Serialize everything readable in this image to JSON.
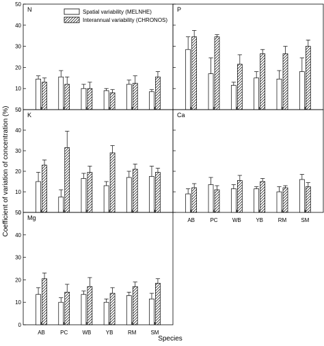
{
  "figure": {
    "ylabel": "Coefficient of variation of concentration (%)",
    "xlabel": "Species",
    "legend": [
      {
        "label": "Spatial variability (MELNHE)",
        "pattern": "open"
      },
      {
        "label": "Interannual variability (CHRONOS)",
        "pattern": "hatched"
      }
    ]
  },
  "chart_data": [
    {
      "type": "bar",
      "panel": "N",
      "categories": [
        "AB",
        "PC",
        "WB",
        "YB",
        "RM",
        "SM"
      ],
      "ylim": [
        0,
        50
      ],
      "yticks": [
        0,
        10,
        20,
        30,
        40,
        50
      ],
      "show_x_tick_labels": false,
      "series": [
        {
          "name": "Spatial variability (MELNHE)",
          "values": [
            14.5,
            15.5,
            10.0,
            9.0,
            12.0,
            8.5
          ],
          "errors": [
            1.5,
            3.0,
            2.0,
            1.0,
            2.0,
            1.0
          ]
        },
        {
          "name": "Interannual variability (CHRONOS)",
          "values": [
            13.0,
            12.0,
            10.0,
            8.0,
            12.5,
            15.5
          ],
          "errors": [
            2.0,
            3.5,
            3.0,
            1.5,
            3.5,
            2.5
          ]
        }
      ]
    },
    {
      "type": "bar",
      "panel": "P",
      "categories": [
        "AB",
        "PC",
        "WB",
        "YB",
        "RM",
        "SM"
      ],
      "ylim": [
        0,
        50
      ],
      "yticks": [
        0,
        10,
        20,
        30,
        40,
        50
      ],
      "show_x_tick_labels": false,
      "series": [
        {
          "name": "Spatial variability (MELNHE)",
          "values": [
            28.5,
            17.0,
            11.5,
            15.0,
            14.5,
            18.0
          ],
          "errors": [
            6.0,
            7.5,
            1.5,
            3.0,
            4.0,
            6.5
          ]
        },
        {
          "name": "Interannual variability (CHRONOS)",
          "values": [
            34.5,
            34.5,
            21.5,
            26.5,
            26.5,
            30.0
          ],
          "errors": [
            3.0,
            1.0,
            4.5,
            2.0,
            3.5,
            3.0
          ]
        }
      ]
    },
    {
      "type": "bar",
      "panel": "K",
      "categories": [
        "AB",
        "PC",
        "WB",
        "YB",
        "RM",
        "SM"
      ],
      "ylim": [
        0,
        50
      ],
      "yticks": [
        0,
        10,
        20,
        30,
        40,
        50
      ],
      "show_x_tick_labels": false,
      "series": [
        {
          "name": "Spatial variability (MELNHE)",
          "values": [
            15.0,
            7.5,
            16.5,
            13.0,
            17.0,
            17.5
          ],
          "errors": [
            4.5,
            3.5,
            2.5,
            2.0,
            3.0,
            5.0
          ]
        },
        {
          "name": "Interannual variability (CHRONOS)",
          "values": [
            23.0,
            31.5,
            19.5,
            29.0,
            21.0,
            19.5
          ],
          "errors": [
            2.5,
            8.0,
            3.0,
            3.5,
            2.5,
            2.0
          ]
        }
      ]
    },
    {
      "type": "bar",
      "panel": "Ca",
      "categories": [
        "AB",
        "PC",
        "WB",
        "YB",
        "RM",
        "SM"
      ],
      "ylim": [
        0,
        50
      ],
      "yticks": [
        0,
        10,
        20,
        30,
        40,
        50
      ],
      "show_x_tick_labels": true,
      "series": [
        {
          "name": "Spatial variability (MELNHE)",
          "values": [
            9.0,
            13.5,
            11.5,
            11.5,
            10.0,
            16.0
          ],
          "errors": [
            2.5,
            3.5,
            2.0,
            1.0,
            2.5,
            2.5
          ]
        },
        {
          "name": "Interannual variability (CHRONOS)",
          "values": [
            12.0,
            11.0,
            15.5,
            15.0,
            12.0,
            12.5
          ],
          "errors": [
            2.0,
            2.0,
            2.5,
            1.5,
            1.0,
            2.0
          ]
        }
      ]
    },
    {
      "type": "bar",
      "panel": "Mg",
      "categories": [
        "AB",
        "PC",
        "WB",
        "YB",
        "RM",
        "SM"
      ],
      "ylim": [
        0,
        50
      ],
      "yticks": [
        0,
        10,
        20,
        30,
        40,
        50
      ],
      "show_x_tick_labels": true,
      "series": [
        {
          "name": "Spatial variability (MELNHE)",
          "values": [
            13.5,
            10.0,
            13.5,
            10.0,
            13.0,
            11.5
          ],
          "errors": [
            3.0,
            2.0,
            1.5,
            1.5,
            1.5,
            2.5
          ]
        },
        {
          "name": "Interannual variability (CHRONOS)",
          "values": [
            20.5,
            14.5,
            17.0,
            14.0,
            17.0,
            18.5
          ],
          "errors": [
            2.5,
            3.5,
            4.0,
            2.5,
            2.0,
            2.0
          ]
        }
      ]
    }
  ]
}
